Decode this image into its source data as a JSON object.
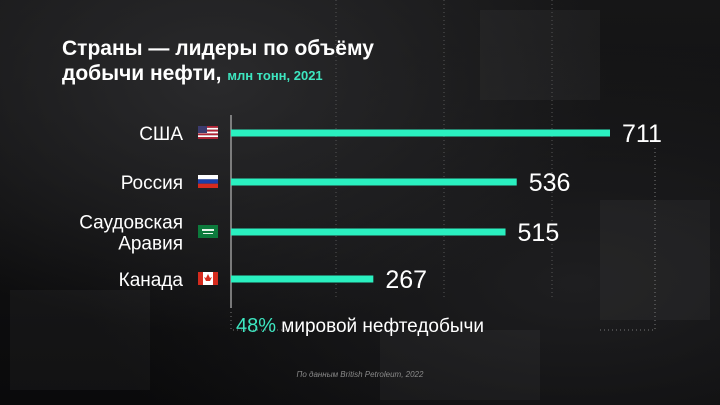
{
  "title_line1": "Страны — лидеры по объёму",
  "title_line2": "добычи нефти,",
  "title_unit": "млн тонн, 2021",
  "share_pct": "48%",
  "share_text": "мировой нефтедобычи",
  "footnote": "По данным British Petroleum, 2022",
  "colors": {
    "accent": "#3de6c0",
    "bar": "#2af0c0",
    "text": "#ffffff"
  },
  "chart_data": {
    "type": "bar",
    "orientation": "horizontal",
    "categories": [
      "США",
      "Россия",
      "Саудовская Аравия",
      "Канада"
    ],
    "category_lines": [
      [
        "США"
      ],
      [
        "Россия"
      ],
      [
        "Саудовская",
        "Аравия"
      ],
      [
        "Канада"
      ]
    ],
    "flags": [
      "us-flag-icon",
      "russia-flag-icon",
      "saudi-arabia-flag-icon",
      "canada-flag-icon"
    ],
    "values": [
      711,
      536,
      515,
      267
    ],
    "value_labels": [
      "711",
      "536",
      "515",
      "267"
    ],
    "xlim": [
      0,
      720
    ],
    "grid": true,
    "title": "Страны — лидеры по объёму добычи нефти, млн тонн, 2021"
  }
}
